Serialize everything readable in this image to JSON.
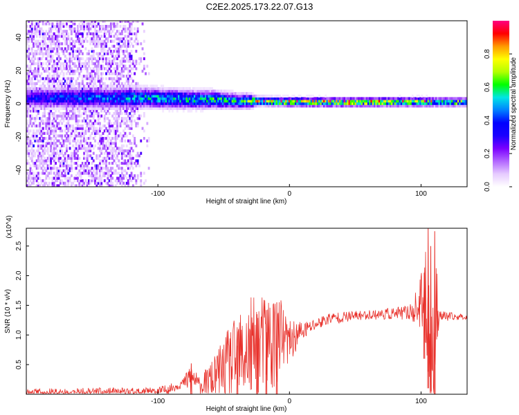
{
  "title": "C2E2.2025.173.22.07.G13",
  "chart_data": [
    {
      "type": "heatmap",
      "xlabel": "Height of straight line (km)",
      "ylabel": "Frequency (Hz)",
      "xlim": [
        -200,
        135
      ],
      "ylim": [
        -50,
        50
      ],
      "xticks": [
        -100,
        0,
        100
      ],
      "yticks": [
        -40,
        -20,
        0,
        20,
        40
      ],
      "colorbar": {
        "label": "Normalized spectral amplitude",
        "range": [
          0,
          1
        ],
        "ticks": [
          "0.0",
          "0.2",
          "0.4",
          "0.6",
          "0.8"
        ],
        "tick_values": [
          0,
          0.2,
          0.4,
          0.6,
          0.8
        ],
        "colors": [
          "#ffffff",
          "#e6cbff",
          "#b266ff",
          "#7a00ff",
          "#1a00ff",
          "#0000ff",
          "#0080ff",
          "#00e5e5",
          "#00ff00",
          "#b3ff00",
          "#ffff00",
          "#ff9900",
          "#ff0000",
          "#ff0080"
        ]
      },
      "ridge": {
        "center_hz": [
          [
            -200,
            3
          ],
          [
            -150,
            3
          ],
          [
            -110,
            3
          ],
          [
            -80,
            2
          ],
          [
            -60,
            2
          ],
          [
            -40,
            1
          ],
          [
            -25,
            1
          ],
          [
            0,
            0.5
          ],
          [
            50,
            0.3
          ],
          [
            100,
            0.5
          ],
          [
            135,
            0.3
          ]
        ],
        "halfwidth_hz": [
          [
            -200,
            6
          ],
          [
            -120,
            6
          ],
          [
            -60,
            5
          ],
          [
            -30,
            4
          ],
          [
            -25,
            2.5
          ],
          [
            135,
            2.5
          ]
        ],
        "peak_amplitude": [
          [
            -200,
            0.35
          ],
          [
            -120,
            0.5
          ],
          [
            -90,
            0.55
          ],
          [
            -60,
            0.6
          ],
          [
            -40,
            0.55
          ],
          [
            -25,
            0.75
          ],
          [
            0,
            0.85
          ],
          [
            50,
            0.75
          ],
          [
            100,
            0.75
          ],
          [
            110,
            0.6
          ],
          [
            135,
            0.55
          ]
        ],
        "noise_extent": [
          -200,
          -105
        ]
      }
    },
    {
      "type": "line",
      "xlabel": "Height of straight line (km)",
      "ylabel": "SNR (10 * v/v)",
      "y_multiplier": "(x10^4)",
      "xlim": [
        -200,
        135
      ],
      "ylim": [
        0,
        2.8
      ],
      "xticks": [
        -100,
        0,
        100
      ],
      "yticks": [
        0.5,
        1.0,
        1.5,
        2.0,
        2.5
      ],
      "line_color": "#e8302a",
      "series": [
        {
          "x": [
            -200,
            -175,
            -150,
            -125,
            -100,
            -90,
            -80,
            -75,
            -72,
            -68,
            -62,
            -55,
            -48,
            -40,
            -32,
            -25,
            -18,
            -12,
            -8,
            -4,
            0,
            5,
            10,
            15,
            20,
            25,
            30,
            40,
            50,
            60,
            70,
            80,
            90,
            95,
            100,
            103,
            106,
            108,
            110,
            112,
            115,
            120,
            125,
            130,
            135
          ],
          "y": [
            0.02,
            0.02,
            0.03,
            0.03,
            0.04,
            0.1,
            0.2,
            0.28,
            0.25,
            0.14,
            0.2,
            0.32,
            0.45,
            0.58,
            0.7,
            0.8,
            0.86,
            0.9,
            0.92,
            0.9,
            0.88,
            0.98,
            1.06,
            1.12,
            1.18,
            1.23,
            1.28,
            1.3,
            1.32,
            1.34,
            1.35,
            1.36,
            1.38,
            1.42,
            1.5,
            1.6,
            1.3,
            0.3,
            1.0,
            1.45,
            1.32,
            1.31,
            1.3,
            1.31,
            1.3
          ]
        }
      ],
      "noise_envelope": [
        [
          -80,
          0.08
        ],
        [
          -75,
          0.35
        ],
        [
          -70,
          0.12
        ],
        [
          -55,
          0.4
        ],
        [
          -48,
          0.6
        ],
        [
          -40,
          0.75
        ],
        [
          -30,
          0.9
        ],
        [
          -20,
          0.85
        ],
        [
          -12,
          0.9
        ],
        [
          -8,
          0.8
        ],
        [
          0,
          0.35
        ],
        [
          15,
          0.12
        ],
        [
          30,
          0.1
        ],
        [
          60,
          0.08
        ],
        [
          90,
          0.12
        ],
        [
          98,
          0.35
        ],
        [
          104,
          0.9
        ],
        [
          108,
          1.2
        ],
        [
          111,
          1.0
        ],
        [
          114,
          0.1
        ],
        [
          135,
          0.04
        ]
      ],
      "spikes": [
        [
          -100,
          0.02,
          0.08
        ],
        [
          -75,
          0.0,
          0.52
        ],
        [
          -40,
          0.0,
          0.82
        ],
        [
          -25,
          0.0,
          1.35
        ],
        [
          -18,
          0.0,
          1.42
        ],
        [
          -10,
          0.0,
          1.55
        ],
        [
          102,
          0.6,
          2.05
        ],
        [
          105,
          0.1,
          2.8
        ],
        [
          107,
          0.05,
          2.5
        ],
        [
          110,
          0.0,
          2.75
        ]
      ]
    }
  ]
}
